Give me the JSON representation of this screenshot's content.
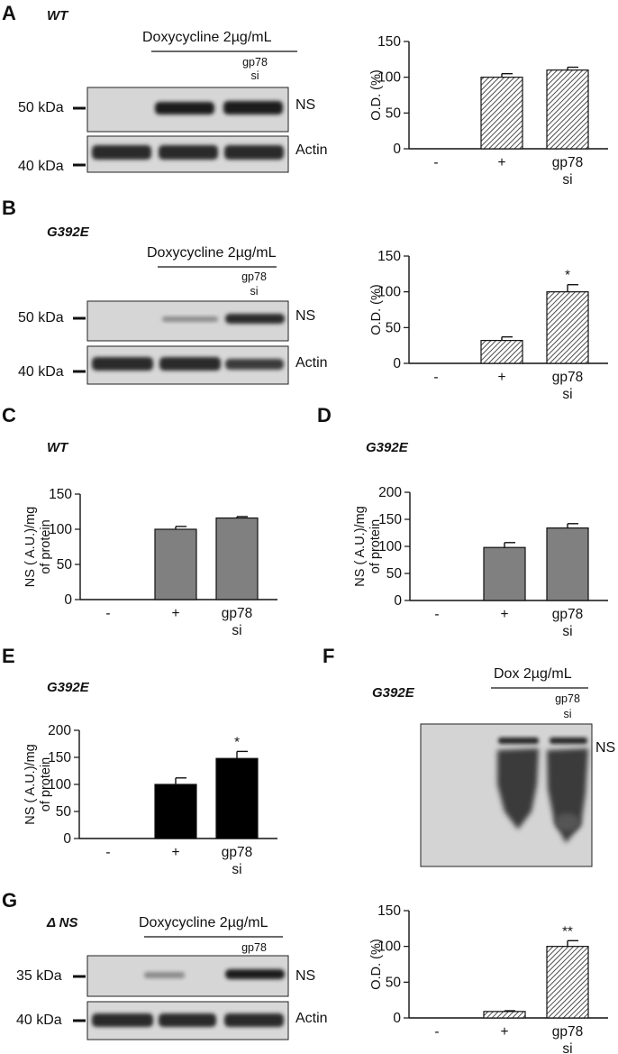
{
  "panels": {
    "A": {
      "letter": "A",
      "title": "WT",
      "treatment": "Doxycycline 2µg/mL",
      "sirna": [
        "gp78",
        "si"
      ],
      "marker_top": "50 kDa",
      "marker_bottom": "40 kDa",
      "band_top": "NS",
      "band_bottom": "Actin"
    },
    "B": {
      "letter": "B",
      "title": "G392E",
      "treatment": "Doxycycline 2µg/mL",
      "sirna": [
        "gp78",
        "si"
      ],
      "marker_top": "50 kDa",
      "marker_bottom": "40 kDa",
      "band_top": "NS",
      "band_bottom": "Actin"
    },
    "C": {
      "letter": "C",
      "title": "WT"
    },
    "D": {
      "letter": "D",
      "title": "G392E"
    },
    "E": {
      "letter": "E",
      "title": "G392E"
    },
    "F": {
      "letter": "F",
      "title": "G392E",
      "treatment": "Dox 2µg/mL",
      "sirna": [
        "gp78",
        "si"
      ],
      "band": "NS"
    },
    "G": {
      "letter": "G",
      "title": "Δ NS",
      "treatment": "Doxycycline 2µg/mL",
      "sirna": [
        "gp78",
        "si"
      ],
      "marker_top": "35 kDa",
      "marker_bottom": "40 kDa",
      "band_top": "NS",
      "band_bottom": "Actin"
    }
  },
  "chart_data": [
    {
      "id": "A",
      "type": "bar",
      "categories": [
        "-",
        "+",
        "gp78\nsi"
      ],
      "values": [
        0,
        100,
        110
      ],
      "errors": [
        0,
        5,
        4
      ],
      "ylabel": "O.D. (%)",
      "ylim": [
        0,
        150
      ],
      "yticks": [
        0,
        50,
        100,
        150
      ],
      "fill": "hatched",
      "annotations": [
        "",
        "",
        ""
      ]
    },
    {
      "id": "B",
      "type": "bar",
      "categories": [
        "-",
        "+",
        "gp78\nsi"
      ],
      "values": [
        0,
        32,
        100
      ],
      "errors": [
        0,
        5,
        10
      ],
      "ylabel": "O.D. (%)",
      "ylim": [
        0,
        150
      ],
      "yticks": [
        0,
        50,
        100,
        150
      ],
      "fill": "hatched",
      "annotations": [
        "",
        "",
        "*"
      ]
    },
    {
      "id": "C",
      "type": "bar",
      "categories": [
        "-",
        "+",
        "gp78\nsi"
      ],
      "values": [
        0,
        100,
        116
      ],
      "errors": [
        0,
        4,
        2
      ],
      "ylabel": "NS ( A.U.)/mg\nof protein",
      "ylim": [
        0,
        150
      ],
      "yticks": [
        0,
        50,
        100,
        150
      ],
      "fill": "#808080",
      "annotations": [
        "",
        "",
        ""
      ]
    },
    {
      "id": "D",
      "type": "bar",
      "categories": [
        "-",
        "+",
        "gp78\nsi"
      ],
      "values": [
        0,
        98,
        134
      ],
      "errors": [
        0,
        9,
        8
      ],
      "ylabel": "NS ( A.U.)/mg\nof protein",
      "ylim": [
        0,
        200
      ],
      "yticks": [
        0,
        50,
        100,
        150,
        200
      ],
      "fill": "#808080",
      "annotations": [
        "",
        "",
        ""
      ]
    },
    {
      "id": "E",
      "type": "bar",
      "categories": [
        "-",
        "+",
        "gp78\nsi"
      ],
      "values": [
        0,
        100,
        148
      ],
      "errors": [
        0,
        12,
        13
      ],
      "ylabel": "NS ( A.U.)/mg\nof protein",
      "ylim": [
        0,
        200
      ],
      "yticks": [
        0,
        50,
        100,
        150,
        200
      ],
      "fill": "#000000",
      "annotations": [
        "",
        "",
        "*"
      ]
    },
    {
      "id": "G",
      "type": "bar",
      "categories": [
        "-",
        "+",
        "gp78\nsi"
      ],
      "values": [
        0,
        9,
        100
      ],
      "errors": [
        0,
        1,
        8
      ],
      "ylabel": "O.D. (%)",
      "ylim": [
        0,
        150
      ],
      "yticks": [
        0,
        50,
        100,
        150
      ],
      "fill": "hatched",
      "annotations": [
        "",
        "",
        "**"
      ]
    }
  ]
}
